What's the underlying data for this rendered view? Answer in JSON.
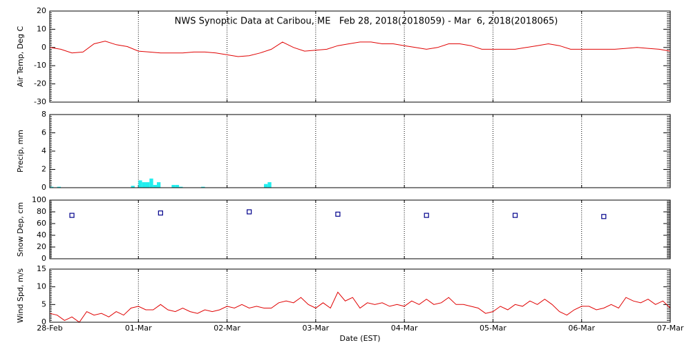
{
  "chart_data": [
    {
      "type": "line",
      "title": "NWS Synoptic Data at Caribou, ME   Feb 28, 2018(2018059) - Mar  6, 2018(2018065)",
      "ylabel": "Air Temp, Deg C",
      "color": "#e00000",
      "x": [
        0,
        3,
        6,
        9,
        12,
        15,
        18,
        21,
        24,
        27,
        30,
        33,
        36,
        39,
        42,
        45,
        48,
        51,
        54,
        57,
        60,
        63,
        66,
        69,
        72,
        75,
        78,
        81,
        84,
        87,
        90,
        93,
        96,
        99,
        102,
        105,
        108,
        111,
        114,
        117,
        120,
        123,
        126,
        129,
        132,
        135,
        138,
        141,
        144,
        147,
        150,
        153,
        156,
        159,
        162,
        165,
        168
      ],
      "values": [
        0,
        -1,
        -3,
        -2.5,
        2,
        3.5,
        1.5,
        0.5,
        -2,
        -2.5,
        -3,
        -3,
        -3,
        -2.5,
        -2.5,
        -3,
        -4,
        -5,
        -4.5,
        -3,
        -1,
        3,
        0,
        -2,
        -1.5,
        -1,
        1,
        2,
        3,
        3,
        2,
        2,
        1,
        0,
        -1,
        0,
        2,
        2,
        1,
        -1,
        -1,
        -1,
        -1,
        0,
        1,
        2,
        1,
        -1,
        -1,
        -1,
        -1,
        -1,
        -0.5,
        0,
        -0.5,
        -1,
        -2
      ],
      "xlim": [
        0,
        168
      ],
      "xticks": [
        0,
        24,
        48,
        72,
        96,
        120,
        144,
        168
      ],
      "xgrid": true,
      "ylim": [
        -30,
        20
      ],
      "yticks": [
        -30,
        -20,
        -10,
        0,
        10,
        20
      ]
    },
    {
      "type": "bar",
      "ylabel": "Precip, mm",
      "color": "#22eeee",
      "x": [
        0,
        2,
        22,
        24,
        25,
        26,
        27,
        28,
        29,
        33,
        34,
        35,
        41,
        58,
        59
      ],
      "values": [
        0.1,
        0.1,
        0.2,
        0.8,
        0.6,
        0.6,
        1.0,
        0.3,
        0.6,
        0.3,
        0.3,
        0.1,
        0.1,
        0.4,
        0.6
      ],
      "xlim": [
        0,
        168
      ],
      "xticks": [
        0,
        24,
        48,
        72,
        96,
        120,
        144,
        168
      ],
      "xgrid": true,
      "ylim": [
        0,
        8
      ],
      "yticks": [
        0,
        2,
        4,
        6,
        8
      ]
    },
    {
      "type": "scatter",
      "ylabel": "Snow Dep, cm",
      "color": "#00008b",
      "x": [
        6,
        30,
        54,
        78,
        102,
        126,
        150
      ],
      "values": [
        74,
        78,
        80,
        76,
        74,
        74,
        72
      ],
      "xlim": [
        0,
        168
      ],
      "xticks": [
        0,
        24,
        48,
        72,
        96,
        120,
        144,
        168
      ],
      "xgrid": true,
      "ylim": [
        0,
        100
      ],
      "yticks": [
        0,
        20,
        40,
        60,
        80,
        100
      ]
    },
    {
      "type": "line",
      "ylabel": "Wind Spd, m/s",
      "xlabel": "Date (EST)",
      "color": "#e00000",
      "x": [
        0,
        2,
        4,
        6,
        8,
        10,
        12,
        14,
        16,
        18,
        20,
        22,
        24,
        26,
        28,
        30,
        32,
        34,
        36,
        38,
        40,
        42,
        44,
        46,
        48,
        50,
        52,
        54,
        56,
        58,
        60,
        62,
        64,
        66,
        68,
        70,
        72,
        74,
        76,
        78,
        80,
        82,
        84,
        86,
        88,
        90,
        92,
        94,
        96,
        98,
        100,
        102,
        104,
        106,
        108,
        110,
        112,
        114,
        116,
        118,
        120,
        122,
        124,
        126,
        128,
        130,
        132,
        134,
        136,
        138,
        140,
        142,
        144,
        146,
        148,
        150,
        152,
        154,
        156,
        158,
        160,
        162,
        164,
        166,
        168
      ],
      "values": [
        2.5,
        2,
        0.5,
        1.5,
        0,
        3,
        2,
        2.5,
        1.5,
        3,
        2,
        4,
        4.5,
        3.5,
        3.5,
        5,
        3.5,
        3,
        4,
        3,
        2.5,
        3.5,
        3,
        3.5,
        4.5,
        4,
        5,
        4,
        4.5,
        4,
        4,
        5.5,
        6,
        5.5,
        7,
        5,
        4,
        5.5,
        4,
        8.5,
        6,
        7,
        4,
        5.5,
        5,
        5.5,
        4.5,
        5,
        4.5,
        6,
        5,
        6.5,
        5,
        5.5,
        7,
        5,
        5,
        4.5,
        4,
        2.5,
        3,
        4.5,
        3.5,
        5,
        4.5,
        6,
        5,
        6.5,
        5,
        3,
        2,
        3.5,
        4.5,
        4.5,
        3.5,
        4,
        5,
        4,
        7,
        6,
        5.5,
        6.5,
        5,
        6,
        4
      ],
      "xlim": [
        0,
        168
      ],
      "xticks": [
        {
          "value": 0,
          "label": "28-Feb"
        },
        {
          "value": 24,
          "label": "01-Mar"
        },
        {
          "value": 48,
          "label": "02-Mar"
        },
        {
          "value": 72,
          "label": "03-Mar"
        },
        {
          "value": 96,
          "label": "04-Mar"
        },
        {
          "value": 120,
          "label": "05-Mar"
        },
        {
          "value": 144,
          "label": "06-Mar"
        },
        {
          "value": 168,
          "label": "07-Mar"
        }
      ],
      "xgrid": true,
      "ylim": [
        0,
        15
      ],
      "yticks": [
        0,
        5,
        10,
        15
      ]
    }
  ]
}
